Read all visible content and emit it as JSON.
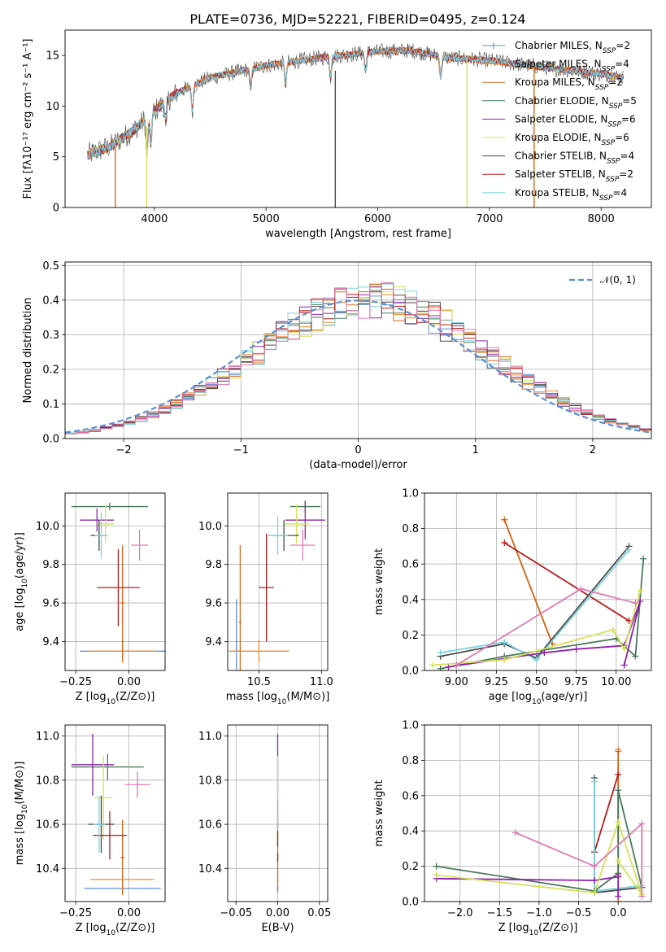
{
  "figure": {
    "title": "PLATE=0736, MJD=52221, FIBERID=0495, z=0.124"
  },
  "colors": {
    "Chabrier MILES": "#5b8fd6",
    "Salpeter MILES": "#f48a2a",
    "Kroupa MILES": "#d2691e",
    "Chabrier ELODIE": "#4c7a5a",
    "Salpeter ELODIE": "#8e24aa",
    "Kroupa ELODIE": "#d4e157",
    "Chabrier STELIB": "#4a4a4a",
    "Salpeter STELIB": "#b71c1c",
    "Kroupa STELIB": "#7fd3de",
    "pink": "#e07bb0",
    "gauss": "#5b8fd6"
  },
  "chart_data": [
    {
      "id": "spectrum",
      "type": "line",
      "xlabel": "wavelength [Angstrom, rest frame]",
      "ylabel": "Flux [fλ10⁻¹⁷ erg cm⁻² s⁻¹ A⁻¹]",
      "xlim": [
        3200,
        8450
      ],
      "ylim": [
        0,
        17.5
      ],
      "xticks": [
        4000,
        5000,
        6000,
        7000,
        8000
      ],
      "yticks": [
        0,
        5,
        10,
        15
      ],
      "grid": false,
      "legend_position": "upper-right",
      "x_range": [
        3400,
        8200
      ],
      "continuum": [
        [
          3400,
          5.2
        ],
        [
          3600,
          6.0
        ],
        [
          3800,
          7.5
        ],
        [
          4000,
          9.5
        ],
        [
          4200,
          11.3
        ],
        [
          4500,
          12.8
        ],
        [
          5000,
          14.0
        ],
        [
          5500,
          14.8
        ],
        [
          6000,
          15.4
        ],
        [
          6300,
          15.5
        ],
        [
          6600,
          14.8
        ],
        [
          7000,
          14.5
        ],
        [
          7500,
          13.8
        ],
        [
          8000,
          13.2
        ],
        [
          8200,
          12.8
        ]
      ],
      "absorption_features": [
        {
          "x": 3933,
          "depth": 3.5
        },
        {
          "x": 3968,
          "depth": 3.0
        },
        {
          "x": 4102,
          "depth": 2.0
        },
        {
          "x": 4340,
          "depth": 2.5
        },
        {
          "x": 4861,
          "depth": 2.0
        },
        {
          "x": 5175,
          "depth": 2.2
        },
        {
          "x": 5890,
          "depth": 1.8
        },
        {
          "x": 6563,
          "depth": 2.0
        },
        {
          "x": 5577,
          "depth": 2.0
        }
      ],
      "series": [
        {
          "name": "Chabrier MILES, NSSP=2",
          "label": "Chabrier MILES, N",
          "sub": "SSP",
          "suffix": "=2",
          "color_key": "Chabrier MILES",
          "marker": "plus"
        },
        {
          "name": "Salpeter MILES, NSSP=4",
          "label": "Salpeter MILES, N",
          "sub": "SSP",
          "suffix": "=4",
          "color_key": "Salpeter MILES",
          "marker": "none"
        },
        {
          "name": "Kroupa MILES, NSSP=2",
          "label": "Kroupa MILES, N",
          "sub": "SSP",
          "suffix": "=2",
          "color_key": "Kroupa MILES",
          "marker": "none"
        },
        {
          "name": "Chabrier ELODIE, NSSP=5",
          "label": "Chabrier ELODIE, N",
          "sub": "SSP",
          "suffix": "=5",
          "color_key": "Chabrier ELODIE",
          "marker": "none"
        },
        {
          "name": "Salpeter ELODIE, NSSP=6",
          "label": "Salpeter ELODIE, N",
          "sub": "SSP",
          "suffix": "=6",
          "color_key": "Salpeter ELODIE",
          "marker": "none"
        },
        {
          "name": "Kroupa ELODIE, NSSP=6",
          "label": "Kroupa ELODIE, N",
          "sub": "SSP",
          "suffix": "=6",
          "color_key": "Kroupa ELODIE",
          "marker": "none"
        },
        {
          "name": "Chabrier STELIB, NSSP=4",
          "label": "Chabrier STELIB, N",
          "sub": "SSP",
          "suffix": "=4",
          "color_key": "Chabrier STELIB",
          "marker": "none"
        },
        {
          "name": "Salpeter STELIB, NSSP=2",
          "label": "Salpeter STELIB, N",
          "sub": "SSP",
          "suffix": "=2",
          "color_key": "Salpeter STELIB",
          "marker": "none"
        },
        {
          "name": "Kroupa STELIB, NSSP=4",
          "label": "Kroupa STELIB, N",
          "sub": "SSP",
          "suffix": "=4",
          "color_key": "Kroupa STELIB",
          "marker": "none"
        }
      ],
      "dropouts": [
        {
          "color_key": "Kroupa MILES",
          "x": 3650,
          "from": 6.0
        },
        {
          "color_key": "Kroupa ELODIE",
          "x": 3930,
          "from": 8.0
        },
        {
          "color_key": "Kroupa ELODIE",
          "x": 6800,
          "from": 14.8
        },
        {
          "color_key": "Kroupa MILES",
          "x": 7400,
          "from": 14.2
        },
        {
          "color_key": "Chabrier STELIB",
          "x": 5620,
          "from": 13.5
        }
      ]
    },
    {
      "id": "residuals",
      "type": "histogram",
      "xlabel": "(data-model)/error",
      "ylabel": "Normed distribution",
      "xlim": [
        -2.5,
        2.5
      ],
      "ylim": [
        0,
        0.51
      ],
      "xticks": [
        -2,
        -1,
        0,
        1,
        2
      ],
      "yticks": [
        0.0,
        0.1,
        0.2,
        0.3,
        0.4,
        0.5
      ],
      "grid": true,
      "legend_position": "upper-right",
      "bin_width": 0.1,
      "reference_curve": {
        "name": "N(0,1)",
        "label_main": "𝒩(0, 1)",
        "mean": 0,
        "sd": 1
      },
      "series_colors": [
        "Chabrier MILES",
        "Salpeter MILES",
        "Kroupa MILES",
        "Chabrier ELODIE",
        "Salpeter ELODIE",
        "Kroupa ELODIE",
        "Chabrier STELIB",
        "Salpeter STELIB",
        "Kroupa STELIB",
        "pink"
      ]
    },
    {
      "id": "age-vs-Z",
      "type": "scatter",
      "xlabel": "Z [log10(Z/Z⊙)]",
      "ylabel": "age  [log10(age/yr)]",
      "xlim": [
        -0.3,
        0.17
      ],
      "ylim": [
        9.25,
        10.17
      ],
      "xticks": [
        -0.25,
        0.0
      ],
      "yticks": [
        9.4,
        9.6,
        9.8,
        10.0
      ],
      "grid": true,
      "points": [
        {
          "color_key": "Chabrier MILES",
          "x": -0.03,
          "xerr": 0.2,
          "y": 9.35,
          "yerr": 0.05
        },
        {
          "color_key": "Salpeter MILES",
          "x": -0.03,
          "xerr": 0.16,
          "y": 9.35,
          "yerr": 0.06
        },
        {
          "color_key": "Kroupa MILES",
          "x": -0.03,
          "xerr": 0.01,
          "y": 9.6,
          "yerr": 0.3
        },
        {
          "color_key": "Chabrier ELODIE",
          "x": -0.09,
          "xerr": 0.18,
          "y": 10.1,
          "yerr": 0.02
        },
        {
          "color_key": "Salpeter ELODIE",
          "x": -0.15,
          "xerr": 0.08,
          "y": 10.03,
          "yerr": 0.06
        },
        {
          "color_key": "Kroupa ELODIE",
          "x": -0.11,
          "xerr": 0.04,
          "y": 10.01,
          "yerr": 0.1
        },
        {
          "color_key": "Chabrier STELIB",
          "x": -0.14,
          "xerr": 0.04,
          "y": 9.95,
          "yerr": 0.08
        },
        {
          "color_key": "Salpeter STELIB",
          "x": -0.05,
          "xerr": 0.1,
          "y": 9.68,
          "yerr": 0.2
        },
        {
          "color_key": "Kroupa STELIB",
          "x": -0.13,
          "xerr": 0.03,
          "y": 9.95,
          "yerr": 0.12
        },
        {
          "color_key": "pink",
          "x": 0.05,
          "xerr": 0.04,
          "y": 9.9,
          "yerr": 0.08
        }
      ]
    },
    {
      "id": "age-vs-mass",
      "type": "scatter",
      "xlabel": "mass [log10(M/M⊙)]",
      "ylabel": "",
      "xlim": [
        10.25,
        11.05
      ],
      "ylim": [
        9.25,
        10.17
      ],
      "xticks": [
        10.5,
        11.0
      ],
      "yticks": [
        9.4,
        9.6,
        9.8,
        10.0
      ],
      "grid": true,
      "points": [
        {
          "color_key": "Chabrier MILES",
          "x": 10.32,
          "xerr": 0.04,
          "y": 9.35,
          "yerr": 0.27
        },
        {
          "color_key": "Salpeter MILES",
          "x": 10.5,
          "xerr": 0.24,
          "y": 9.35,
          "yerr": 0.06
        },
        {
          "color_key": "Kroupa MILES",
          "x": 10.35,
          "xerr": 0.01,
          "y": 9.5,
          "yerr": 0.4
        },
        {
          "color_key": "Chabrier ELODIE",
          "x": 10.87,
          "xerr": 0.12,
          "y": 10.1,
          "yerr": 0.03
        },
        {
          "color_key": "Salpeter ELODIE",
          "x": 10.87,
          "xerr": 0.16,
          "y": 10.03,
          "yerr": 0.1
        },
        {
          "color_key": "Kroupa ELODIE",
          "x": 10.8,
          "xerr": 0.1,
          "y": 10.01,
          "yerr": 0.1
        },
        {
          "color_key": "Chabrier STELIB",
          "x": 10.7,
          "xerr": 0.12,
          "y": 9.95,
          "yerr": 0.08
        },
        {
          "color_key": "Salpeter STELIB",
          "x": 10.56,
          "xerr": 0.06,
          "y": 9.68,
          "yerr": 0.28
        },
        {
          "color_key": "Kroupa STELIB",
          "x": 10.65,
          "xerr": 0.08,
          "y": 9.95,
          "yerr": 0.1
        },
        {
          "color_key": "pink",
          "x": 10.85,
          "xerr": 0.1,
          "y": 9.9,
          "yerr": 0.08
        }
      ]
    },
    {
      "id": "weight-vs-age",
      "type": "line",
      "xlabel": "age  [log10(age/yr)]",
      "ylabel": "mass weight",
      "xlim": [
        8.8,
        10.22
      ],
      "ylim": [
        0,
        1.0
      ],
      "xticks": [
        9.0,
        9.25,
        9.5,
        9.75,
        10.0
      ],
      "yticks": [
        0.0,
        0.2,
        0.4,
        0.6,
        0.8,
        1.0
      ],
      "grid": true,
      "series": [
        {
          "color_key": "Salpeter MILES",
          "x": [
            9.3,
            9.6
          ],
          "y": [
            0.85,
            0.15
          ]
        },
        {
          "color_key": "Kroupa MILES",
          "x": [
            9.3,
            9.6
          ],
          "y": [
            0.85,
            0.15
          ]
        },
        {
          "color_key": "Salpeter STELIB",
          "x": [
            9.3,
            10.08
          ],
          "y": [
            0.72,
            0.28
          ]
        },
        {
          "color_key": "Chabrier STELIB",
          "x": [
            8.9,
            9.3,
            9.5,
            10.08
          ],
          "y": [
            0.08,
            0.15,
            0.07,
            0.7
          ]
        },
        {
          "color_key": "Kroupa STELIB",
          "x": [
            8.9,
            9.3,
            9.5,
            10.08
          ],
          "y": [
            0.1,
            0.16,
            0.06,
            0.68
          ]
        },
        {
          "color_key": "Chabrier ELODIE",
          "x": [
            8.9,
            9.3,
            10.0,
            10.12,
            10.17
          ],
          "y": [
            0.01,
            0.08,
            0.18,
            0.08,
            0.63
          ]
        },
        {
          "color_key": "Salpeter ELODIE",
          "x": [
            8.95,
            9.55,
            9.75,
            10.05,
            10.15,
            10.05
          ],
          "y": [
            0.02,
            0.1,
            0.12,
            0.14,
            0.39,
            0.03
          ]
        },
        {
          "color_key": "Kroupa ELODIE",
          "x": [
            8.85,
            9.3,
            9.98,
            10.05,
            10.15
          ],
          "y": [
            0.03,
            0.06,
            0.23,
            0.12,
            0.45
          ]
        },
        {
          "color_key": "pink",
          "x": [
            9.0,
            9.78,
            10.12
          ],
          "y": [
            0.03,
            0.46,
            0.38
          ]
        }
      ]
    },
    {
      "id": "mass-vs-Z",
      "type": "scatter",
      "xlabel": "Z [log10(Z/Z⊙)]",
      "ylabel": "mass [log10(M/M⊙)]",
      "xlim": [
        -0.3,
        0.17
      ],
      "ylim": [
        10.25,
        11.05
      ],
      "xticks": [
        -0.25,
        0.0
      ],
      "yticks": [
        10.4,
        10.6,
        10.8,
        11.0
      ],
      "grid": true,
      "points": [
        {
          "color_key": "Chabrier MILES",
          "x": -0.03,
          "xerr": 0.18,
          "y": 10.31,
          "yerr": 0.01
        },
        {
          "color_key": "Salpeter MILES",
          "x": -0.03,
          "xerr": 0.15,
          "y": 10.35,
          "yerr": 0.01
        },
        {
          "color_key": "Kroupa MILES",
          "x": -0.03,
          "xerr": 0.01,
          "y": 10.45,
          "yerr": 0.17
        },
        {
          "color_key": "Chabrier ELODIE",
          "x": -0.1,
          "xerr": 0.17,
          "y": 10.86,
          "yerr": 0.06
        },
        {
          "color_key": "Salpeter ELODIE",
          "x": -0.17,
          "xerr": 0.1,
          "y": 10.87,
          "yerr": 0.14
        },
        {
          "color_key": "Kroupa ELODIE",
          "x": -0.12,
          "xerr": 0.04,
          "y": 10.72,
          "yerr": 0.19
        },
        {
          "color_key": "Chabrier STELIB",
          "x": -0.13,
          "xerr": 0.06,
          "y": 10.6,
          "yerr": 0.13
        },
        {
          "color_key": "Salpeter STELIB",
          "x": -0.09,
          "xerr": 0.08,
          "y": 10.55,
          "yerr": 0.11
        },
        {
          "color_key": "Kroupa STELIB",
          "x": -0.14,
          "xerr": 0.03,
          "y": 10.6,
          "yerr": 0.13
        },
        {
          "color_key": "pink",
          "x": 0.04,
          "xerr": 0.06,
          "y": 10.78,
          "yerr": 0.06
        }
      ]
    },
    {
      "id": "mass-vs-EBV",
      "type": "scatter",
      "xlabel": "E(B-V)",
      "ylabel": "",
      "xlim": [
        -0.06,
        0.06
      ],
      "ylim": [
        10.25,
        11.05
      ],
      "xticks": [
        -0.05,
        0.0,
        0.05
      ],
      "yticks": [
        10.4,
        10.6,
        10.8,
        11.0
      ],
      "grid": true,
      "points": [
        {
          "color_key": "Chabrier MILES",
          "x": 0.0,
          "xerr": 0.0,
          "y": 10.31,
          "yerr": 0.01
        },
        {
          "color_key": "Salpeter MILES",
          "x": 0.0,
          "xerr": 0.0,
          "y": 10.35,
          "yerr": 0.01
        },
        {
          "color_key": "Kroupa MILES",
          "x": 0.0,
          "xerr": 0.0,
          "y": 10.45,
          "yerr": 0.16
        },
        {
          "color_key": "Salpeter ELODIE",
          "x": 0.0,
          "xerr": 0.0,
          "y": 10.87,
          "yerr": 0.14
        },
        {
          "color_key": "Kroupa ELODIE",
          "x": 0.0,
          "xerr": 0.0,
          "y": 10.72,
          "yerr": 0.19
        },
        {
          "color_key": "Chabrier STELIB",
          "x": 0.0,
          "xerr": 0.0,
          "y": 10.6,
          "yerr": 0.1
        },
        {
          "color_key": "Salpeter STELIB",
          "x": 0.0,
          "xerr": 0.0,
          "y": 10.45,
          "yerr": 0.02
        },
        {
          "color_key": "Kroupa STELIB",
          "x": 0.0,
          "xerr": 0.0,
          "y": 10.65,
          "yerr": 0.08
        }
      ]
    },
    {
      "id": "weight-vs-Z",
      "type": "line",
      "xlabel": "Z [log10(Z/Z⊙)]",
      "ylabel": "mass weight",
      "xlim": [
        -2.45,
        0.42
      ],
      "ylim": [
        0,
        1.0
      ],
      "xticks": [
        -2.0,
        -1.5,
        -1.0,
        -0.5,
        0.0
      ],
      "yticks": [
        0.0,
        0.2,
        0.4,
        0.6,
        0.8,
        1.0
      ],
      "grid": true,
      "series": [
        {
          "color_key": "Salpeter MILES",
          "x": [
            0.0,
            0.0
          ],
          "y": [
            0.0,
            0.86
          ]
        },
        {
          "color_key": "Kroupa MILES",
          "x": [
            0.0,
            0.0
          ],
          "y": [
            0.15,
            0.85
          ]
        },
        {
          "color_key": "Salpeter STELIB",
          "x": [
            -0.3,
            0.0
          ],
          "y": [
            0.28,
            0.72
          ]
        },
        {
          "color_key": "Chabrier STELIB",
          "x": [
            -0.3,
            -0.3,
            0.3
          ],
          "y": [
            0.7,
            0.05,
            0.08
          ]
        },
        {
          "color_key": "Kroupa STELIB",
          "x": [
            -0.3,
            -0.3,
            0.3
          ],
          "y": [
            0.68,
            0.06,
            0.09
          ]
        },
        {
          "color_key": "Chabrier ELODIE",
          "x": [
            -2.3,
            -0.3,
            0.0,
            0.0,
            0.3
          ],
          "y": [
            0.2,
            0.06,
            0.16,
            0.63,
            0.08
          ]
        },
        {
          "color_key": "Salpeter ELODIE",
          "x": [
            -2.3,
            -0.3,
            0.0,
            0.0
          ],
          "y": [
            0.13,
            0.12,
            0.14,
            0.03
          ]
        },
        {
          "color_key": "Kroupa ELODIE",
          "x": [
            -2.3,
            -0.3,
            0.0,
            0.3,
            0.0
          ],
          "y": [
            0.15,
            0.05,
            0.45,
            0.04,
            0.23
          ]
        },
        {
          "color_key": "pink",
          "x": [
            -1.3,
            -0.3,
            0.3,
            0.3
          ],
          "y": [
            0.39,
            0.2,
            0.44,
            0.03
          ]
        }
      ]
    }
  ]
}
